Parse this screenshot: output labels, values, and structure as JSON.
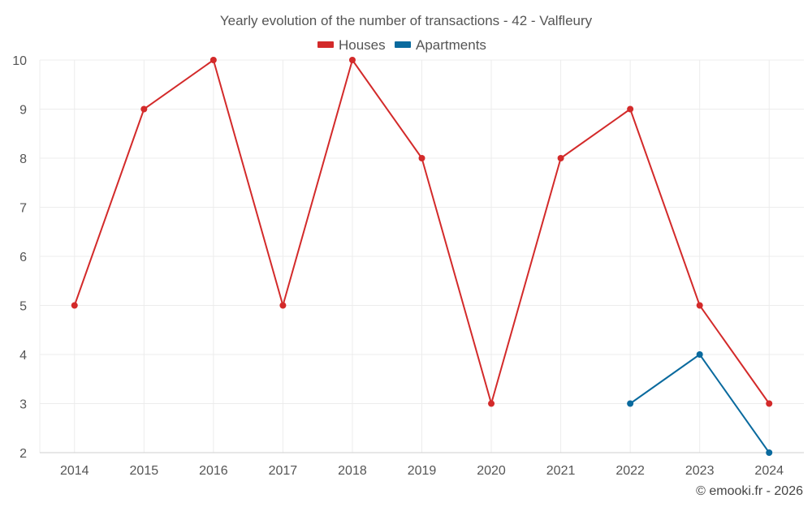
{
  "chart_data": {
    "type": "line",
    "title": "Yearly evolution of the number of transactions - 42 - Valfleury",
    "categories": [
      "2014",
      "2015",
      "2016",
      "2017",
      "2018",
      "2019",
      "2020",
      "2021",
      "2022",
      "2023",
      "2024"
    ],
    "ylim": [
      2,
      10
    ],
    "yticks": [
      2,
      3,
      4,
      5,
      6,
      7,
      8,
      9,
      10
    ],
    "grid": true,
    "legend_position": "top-center",
    "series": [
      {
        "name": "Houses",
        "color": "#d32a2a",
        "values": [
          5,
          9,
          10,
          5,
          10,
          8,
          3,
          8,
          9,
          5,
          3
        ]
      },
      {
        "name": "Apartments",
        "color": "#0a6a9e",
        "values": [
          null,
          null,
          null,
          null,
          null,
          null,
          null,
          null,
          3,
          4,
          2
        ]
      }
    ]
  },
  "credit": "© emooki.fr - 2026"
}
